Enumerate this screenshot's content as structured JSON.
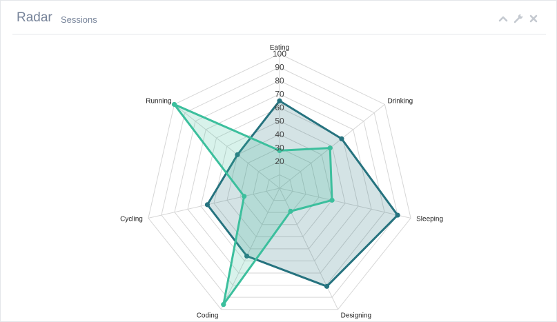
{
  "panel": {
    "title": "Radar",
    "subtitle": "Sessions"
  },
  "toolbar": {
    "collapse_icon": "chevron-up-icon",
    "settings_icon": "wrench-icon",
    "close_icon": "close-icon"
  },
  "chart_data": {
    "type": "radar",
    "categories": [
      "Eating",
      "Drinking",
      "Sleeping",
      "Designing",
      "Coding",
      "Cycling",
      "Running"
    ],
    "rlim": [
      0,
      100
    ],
    "ticks": [
      20,
      30,
      40,
      50,
      60,
      70,
      80,
      90,
      100
    ],
    "grid": true,
    "series": [
      {
        "values": [
          65,
          59,
          90,
          81,
          56,
          55,
          40
        ],
        "color": "#26737f",
        "fill": "rgba(38,115,127,0.2)"
      },
      {
        "values": [
          28,
          48,
          40,
          19,
          96,
          27,
          100
        ],
        "color": "#3cbf9d",
        "fill": "rgba(60,191,157,0.2)"
      }
    ]
  }
}
